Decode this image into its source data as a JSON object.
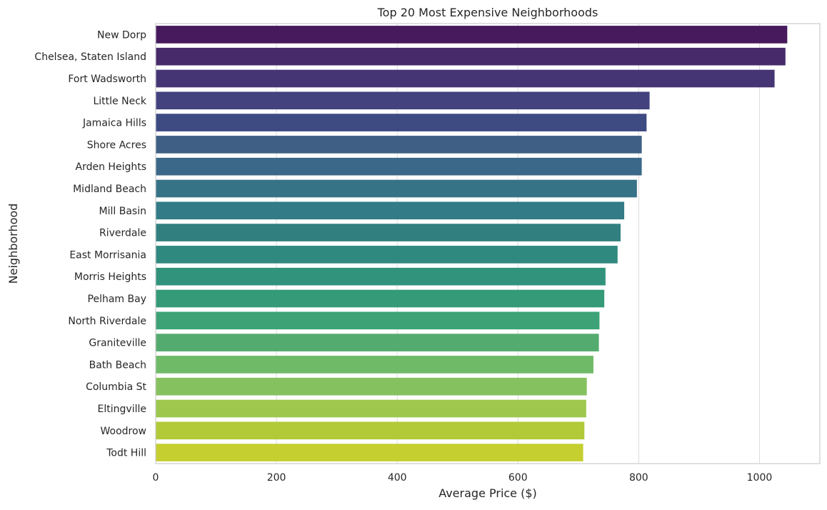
{
  "chart_data": {
    "type": "bar",
    "orientation": "horizontal",
    "title": "Top 20 Most Expensive Neighborhoods",
    "xlabel": "Average Price ($)",
    "ylabel": "Neighborhood",
    "xlim": [
      0,
      1100
    ],
    "xticks": [
      0,
      200,
      400,
      600,
      800,
      1000
    ],
    "grid": "vertical",
    "colormap": "viridis",
    "categories": [
      "New Dorp",
      "Chelsea, Staten Island",
      "Fort Wadsworth",
      "Little Neck",
      "Jamaica Hills",
      "Shore Acres",
      "Arden Heights",
      "Midland Beach",
      "Mill Basin",
      "Riverdale",
      "East Morrisania",
      "Morris Heights",
      "Pelham Bay",
      "North Riverdale",
      "Graniteville",
      "Bath Beach",
      "Columbia St",
      "Eltingville",
      "Woodrow",
      "Todt Hill"
    ],
    "values": [
      1046,
      1043,
      1025,
      818,
      813,
      805,
      805,
      797,
      776,
      770,
      765,
      745,
      743,
      735,
      734,
      725,
      714,
      713,
      710,
      708
    ],
    "colors": [
      "#471a5e",
      "#472a6a",
      "#463575",
      "#43427f",
      "#3e4a82",
      "#3f5f84",
      "#3b6888",
      "#377387",
      "#337b86",
      "#31807f",
      "#30897f",
      "#31937b",
      "#349a78",
      "#3da376",
      "#54ab6f",
      "#6fba67",
      "#86c15f",
      "#9ec74d",
      "#b2ca38",
      "#c6cf30"
    ]
  }
}
